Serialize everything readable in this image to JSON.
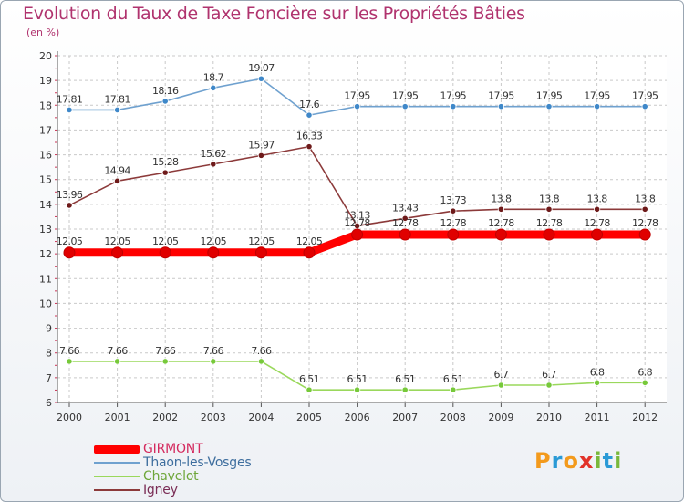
{
  "title": "Evolution du Taux de Taxe Foncière sur les Propriétés Bâties",
  "unit": "(en %)",
  "logo": {
    "letters": [
      "P",
      "r",
      "o",
      "x",
      "i",
      "t",
      "i"
    ],
    "colors": [
      "#f39a1c",
      "#2a9ad6",
      "#f39a1c",
      "#e2332a",
      "#79b83b",
      "#2a9ad6",
      "#79b83b"
    ]
  },
  "chart_data": {
    "type": "line",
    "title": "Evolution du Taux de Taxe Foncière sur les Propriétés Bâties",
    "ylabel": "(en %)",
    "xlabel": "",
    "x": [
      "2000",
      "2001",
      "2002",
      "2003",
      "2004",
      "2005",
      "2006",
      "2007",
      "2008",
      "2009",
      "2010",
      "2011",
      "2012"
    ],
    "ylim": [
      6,
      20
    ],
    "yticks": [
      "6",
      "7",
      "8",
      "9",
      "10",
      "11",
      "12",
      "13",
      "14",
      "15",
      "16",
      "17",
      "18",
      "19",
      "20"
    ],
    "grid": true,
    "series": [
      {
        "name": "GIRMONT",
        "color": "#ff0000",
        "marker": "#e00000",
        "values": [
          12.05,
          12.05,
          12.05,
          12.05,
          12.05,
          12.05,
          12.78,
          12.78,
          12.78,
          12.78,
          12.78,
          12.78,
          12.78
        ],
        "labels": [
          "12.05",
          "12.05",
          "12.05",
          "12.05",
          "12.05",
          "12.05",
          "12.78",
          "12.78",
          "12.78",
          "12.78",
          "12.78",
          "12.78",
          "12.78"
        ]
      },
      {
        "name": "Thaon-les-Vosges",
        "color": "#6fa1cf",
        "marker": "#3f88c9",
        "values": [
          17.81,
          17.81,
          18.16,
          18.7,
          19.07,
          17.6,
          17.95,
          17.95,
          17.95,
          17.95,
          17.95,
          17.95,
          17.95
        ],
        "labels": [
          "17.81",
          "17.81",
          "18.16",
          "18.7",
          "19.07",
          "17.6",
          "17.95",
          "17.95",
          "17.95",
          "17.95",
          "17.95",
          "17.95",
          "17.95"
        ]
      },
      {
        "name": "Chavelot",
        "color": "#9ad85c",
        "marker": "#77c93a",
        "values": [
          7.66,
          7.66,
          7.66,
          7.66,
          7.66,
          6.51,
          6.51,
          6.51,
          6.51,
          6.7,
          6.7,
          6.8,
          6.8
        ],
        "labels": [
          "7.66",
          "7.66",
          "7.66",
          "7.66",
          "7.66",
          "6.51",
          "6.51",
          "6.51",
          "6.51",
          "6.7",
          "6.7",
          "6.8",
          "6.8"
        ]
      },
      {
        "name": "Igney",
        "color": "#8c3a3a",
        "marker": "#6e1a1a",
        "values": [
          13.96,
          14.94,
          15.28,
          15.62,
          15.97,
          16.33,
          13.13,
          13.43,
          13.73,
          13.8,
          13.8,
          13.8,
          13.8
        ],
        "labels": [
          "13.96",
          "14.94",
          "15.28",
          "15.62",
          "15.97",
          "16.33",
          "13.13",
          "13.43",
          "13.73",
          "13.8",
          "13.8",
          "13.8",
          "13.8"
        ]
      }
    ]
  }
}
